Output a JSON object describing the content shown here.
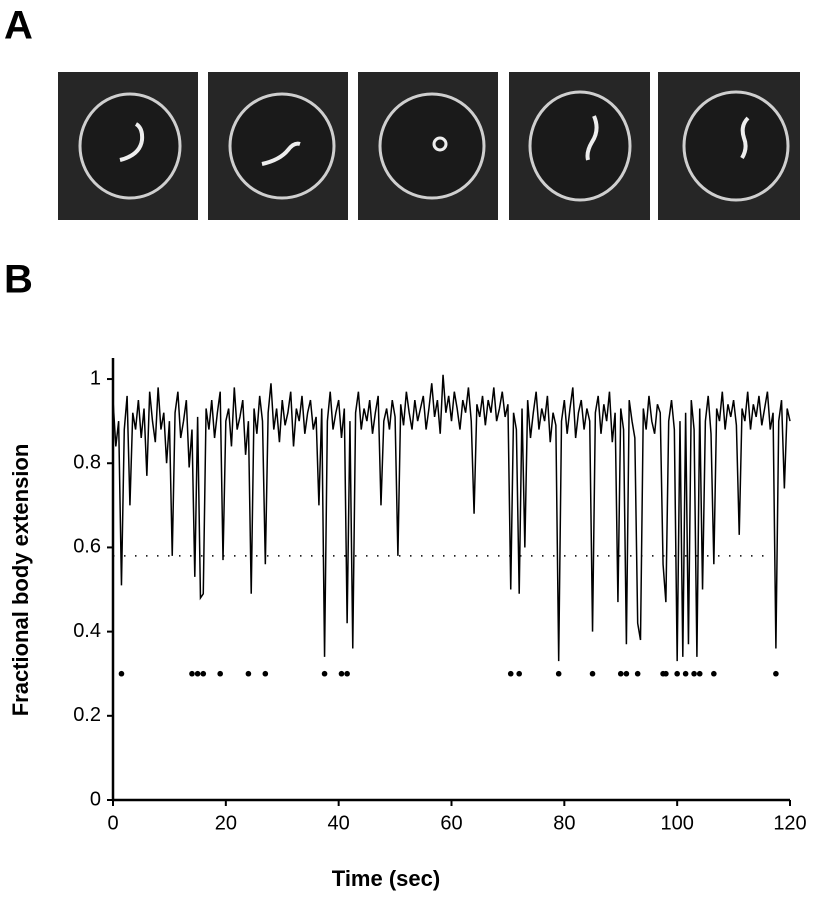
{
  "panels": {
    "a": "A",
    "b": "B"
  },
  "chart_data": {
    "type": "line",
    "xlabel": "Time (sec)",
    "ylabel": "Fractional body extension",
    "xlim": [
      0,
      120
    ],
    "ylim": [
      0,
      1.05
    ],
    "xticks": [
      0,
      20,
      40,
      60,
      80,
      100,
      120
    ],
    "yticks": [
      0,
      0.2,
      0.4,
      0.6,
      0.8,
      1
    ],
    "grid": false,
    "x": [
      0,
      0.5,
      1,
      1.5,
      2,
      2.5,
      3,
      3.5,
      4,
      4.5,
      5,
      5.5,
      6,
      6.5,
      7,
      7.5,
      8,
      8.5,
      9,
      9.5,
      10,
      10.5,
      11,
      11.5,
      12,
      12.5,
      13,
      13.5,
      14,
      14.5,
      15,
      15.5,
      16,
      16.5,
      17,
      17.5,
      18,
      18.5,
      19,
      19.5,
      20,
      20.5,
      21,
      21.5,
      22,
      22.5,
      23,
      23.5,
      24,
      24.5,
      25,
      25.5,
      26,
      26.5,
      27,
      27.5,
      28,
      28.5,
      29,
      29.5,
      30,
      30.5,
      31,
      31.5,
      32,
      32.5,
      33,
      33.5,
      34,
      34.5,
      35,
      35.5,
      36,
      36.5,
      37,
      37.5,
      38,
      38.5,
      39,
      39.5,
      40,
      40.5,
      41,
      41.5,
      42,
      42.5,
      43,
      43.5,
      44,
      44.5,
      45,
      45.5,
      46,
      46.5,
      47,
      47.5,
      48,
      48.5,
      49,
      49.5,
      50,
      50.5,
      51,
      51.5,
      52,
      52.5,
      53,
      53.5,
      54,
      54.5,
      55,
      55.5,
      56,
      56.5,
      57,
      57.5,
      58,
      58.5,
      59,
      59.5,
      60,
      60.5,
      61,
      61.5,
      62,
      62.5,
      63,
      63.5,
      64,
      64.5,
      65,
      65.5,
      66,
      66.5,
      67,
      67.5,
      68,
      68.5,
      69,
      69.5,
      70,
      70.5,
      71,
      71.5,
      72,
      72.5,
      73,
      73.5,
      74,
      74.5,
      75,
      75.5,
      76,
      76.5,
      77,
      77.5,
      78,
      78.5,
      79,
      79.5,
      80,
      80.5,
      81,
      81.5,
      82,
      82.5,
      83,
      83.5,
      84,
      84.5,
      85,
      85.5,
      86,
      86.5,
      87,
      87.5,
      88,
      88.5,
      89,
      89.5,
      90,
      90.5,
      91,
      91.5,
      92,
      92.5,
      93,
      93.5,
      94,
      94.5,
      95,
      95.5,
      96,
      96.5,
      97,
      97.5,
      98,
      98.5,
      99,
      99.5,
      100,
      100.5,
      101,
      101.5,
      102,
      102.5,
      103,
      103.5,
      104,
      104.5,
      105,
      105.5,
      106,
      106.5,
      107,
      107.5,
      108,
      108.5,
      109,
      109.5,
      110,
      110.5,
      111,
      111.5,
      112,
      112.5,
      113,
      113.5,
      114,
      114.5,
      115,
      115.5,
      116,
      116.5,
      117,
      117.5,
      118,
      118.5,
      119,
      119.5,
      120
    ],
    "series": [
      {
        "color": "#000000",
        "values": [
          0.95,
          0.84,
          0.9,
          0.51,
          0.88,
          0.96,
          0.7,
          0.92,
          0.88,
          0.95,
          0.86,
          0.93,
          0.77,
          0.97,
          0.9,
          0.85,
          0.98,
          0.88,
          0.92,
          0.8,
          0.9,
          0.58,
          0.92,
          0.97,
          0.86,
          0.9,
          0.95,
          0.79,
          0.88,
          0.53,
          0.91,
          0.48,
          0.49,
          0.93,
          0.88,
          0.95,
          0.86,
          0.92,
          0.97,
          0.57,
          0.9,
          0.93,
          0.84,
          0.98,
          0.88,
          0.91,
          0.95,
          0.82,
          0.9,
          0.49,
          0.93,
          0.87,
          0.96,
          0.9,
          0.56,
          0.92,
          0.99,
          0.88,
          0.93,
          0.85,
          0.95,
          0.89,
          0.92,
          0.97,
          0.84,
          0.93,
          0.9,
          0.96,
          0.87,
          0.92,
          0.95,
          0.88,
          0.91,
          0.7,
          0.93,
          0.34,
          0.9,
          0.97,
          0.88,
          0.92,
          0.95,
          0.86,
          0.93,
          0.42,
          0.9,
          0.36,
          0.92,
          0.97,
          0.88,
          0.93,
          0.9,
          0.95,
          0.87,
          0.92,
          0.96,
          0.7,
          0.9,
          0.93,
          0.88,
          0.95,
          0.91,
          0.58,
          0.94,
          0.89,
          0.97,
          0.92,
          0.88,
          0.95,
          0.9,
          0.93,
          0.96,
          0.88,
          0.93,
          0.99,
          0.91,
          0.95,
          0.87,
          1.01,
          0.92,
          0.96,
          0.9,
          0.97,
          0.93,
          0.88,
          0.95,
          0.92,
          0.98,
          0.9,
          0.68,
          0.94,
          0.91,
          0.96,
          0.89,
          0.95,
          0.92,
          0.98,
          0.9,
          0.93,
          0.97,
          0.91,
          0.94,
          0.5,
          0.92,
          0.88,
          0.49,
          0.93,
          0.6,
          0.95,
          0.86,
          0.92,
          0.97,
          0.88,
          0.93,
          0.9,
          0.96,
          0.85,
          0.92,
          0.89,
          0.33,
          0.9,
          0.95,
          0.87,
          0.93,
          0.98,
          0.86,
          0.92,
          0.95,
          0.88,
          0.93,
          0.9,
          0.4,
          0.92,
          0.96,
          0.87,
          0.94,
          0.9,
          0.97,
          0.85,
          0.92,
          0.47,
          0.93,
          0.88,
          0.37,
          0.95,
          0.9,
          0.86,
          0.42,
          0.38,
          0.93,
          0.88,
          0.96,
          0.9,
          0.87,
          0.94,
          0.92,
          0.56,
          0.47,
          0.9,
          0.95,
          0.88,
          0.33,
          0.9,
          0.34,
          0.92,
          0.37,
          0.95,
          0.88,
          0.34,
          0.93,
          0.5,
          0.9,
          0.96,
          0.87,
          0.56,
          0.93,
          0.9,
          0.97,
          0.88,
          0.94,
          0.91,
          0.95,
          0.89,
          0.63,
          0.93,
          0.9,
          0.97,
          0.88,
          0.94,
          0.91,
          0.96,
          0.89,
          0.93,
          0.97,
          0.88,
          0.92,
          0.36,
          0.9,
          0.95,
          0.74,
          0.93,
          0.9
        ]
      }
    ],
    "threshold": 0.58,
    "events": {
      "x": [
        1.5,
        14,
        15,
        16,
        19,
        24,
        27,
        37.5,
        40.5,
        41.5,
        70.5,
        72,
        79,
        85,
        90,
        91,
        93,
        97.5,
        98,
        100,
        101.5,
        103,
        104,
        106.5,
        117.5
      ],
      "values": [
        0.3,
        0.3,
        0.3,
        0.3,
        0.3,
        0.3,
        0.3,
        0.3,
        0.3,
        0.3,
        0.3,
        0.3,
        0.3,
        0.3,
        0.3,
        0.3,
        0.3,
        0.3,
        0.3,
        0.3,
        0.3,
        0.3,
        0.3,
        0.3,
        0.3
      ]
    }
  }
}
